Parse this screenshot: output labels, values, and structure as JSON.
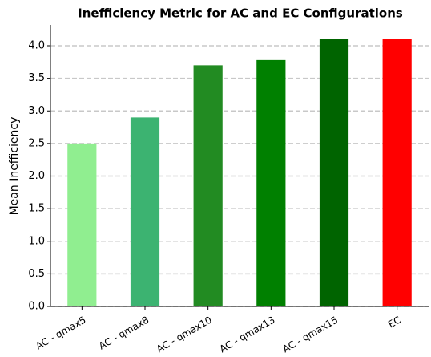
{
  "chart_data": {
    "type": "bar",
    "title": "Inefficiency Metric for AC and EC Configurations",
    "y_label": "Mean Inefficiency",
    "categories": [
      "AC - qmax5",
      "AC - qmax8",
      "AC - qmax10",
      "AC - qmax13",
      "AC - qmax15",
      "EC"
    ],
    "values": [
      2.5,
      2.9,
      3.7,
      3.78,
      4.1,
      4.1
    ],
    "colors": [
      "#90ee90",
      "#3cb371",
      "#228b22",
      "#008000",
      "#006400",
      "#ff0000"
    ],
    "ylim": [
      0,
      4.32
    ],
    "yticks": [
      {
        "value": 0,
        "label": "0.0"
      },
      {
        "value": 0.5,
        "label": "0.5"
      },
      {
        "value": 1,
        "label": "1.0"
      },
      {
        "value": 1.5,
        "label": "1.5"
      },
      {
        "value": 2,
        "label": "2.0"
      },
      {
        "value": 2.5,
        "label": "2.5"
      },
      {
        "value": 3,
        "label": "3.0"
      },
      {
        "value": 3.5,
        "label": "3.5"
      },
      {
        "value": 4,
        "label": "4.0"
      }
    ],
    "grid": true
  }
}
